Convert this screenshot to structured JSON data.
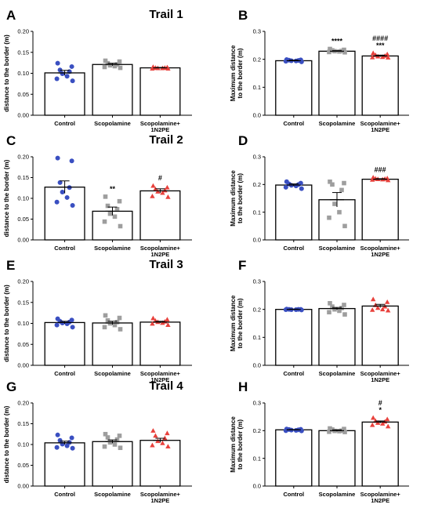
{
  "colors": {
    "Control": "#3a4fc1",
    "Scopolamine": "#9e9e9e",
    "Scopolamine+1N2PE": "#e8413c"
  },
  "chart_data": [
    {
      "type": "bar",
      "panel": "A",
      "title": "Trail 1",
      "ylabel": [
        "distance to the border (m)"
      ],
      "ylim": [
        0,
        0.2
      ],
      "yticks": [
        "0.00",
        "0.05",
        "0.10",
        "0.15",
        "0.20"
      ],
      "categories": [
        [
          "Control"
        ],
        [
          "Scopolamine"
        ],
        [
          "Scopolamine+",
          "1N2PE"
        ]
      ],
      "series": [
        {
          "values": [
            0.101,
            0.121,
            0.113
          ],
          "sem": [
            0.006,
            0.003,
            0.001
          ],
          "significance": [
            "",
            "",
            ""
          ]
        }
      ],
      "points": [
        [
          0.124,
          0.116,
          0.108,
          0.104,
          0.099,
          0.093,
          0.087,
          0.082
        ],
        [
          0.13,
          0.128,
          0.124,
          0.121,
          0.119,
          0.117,
          0.115,
          0.113
        ],
        [
          0.115,
          0.114,
          0.113,
          0.113,
          0.112,
          0.112,
          0.111,
          0.111
        ]
      ]
    },
    {
      "type": "bar",
      "panel": "B",
      "title": "",
      "ylabel": [
        "Maximum distance",
        "to the border (m)"
      ],
      "ylim": [
        0,
        0.3
      ],
      "yticks": [
        "0.0",
        "0.1",
        "0.2",
        "0.3"
      ],
      "categories": [
        [
          "Control"
        ],
        [
          "Scopolamine"
        ],
        [
          "Scopolamine+",
          "1N2PE"
        ]
      ],
      "series": [
        {
          "values": [
            0.195,
            0.229,
            0.212
          ],
          "sem": [
            0.002,
            0.002,
            0.003
          ],
          "significance": [
            "",
            "****",
            "####\n***"
          ]
        }
      ],
      "points": [
        [
          0.199,
          0.198,
          0.197,
          0.196,
          0.195,
          0.194,
          0.193,
          0.191
        ],
        [
          0.237,
          0.234,
          0.232,
          0.23,
          0.229,
          0.228,
          0.226,
          0.225
        ],
        [
          0.222,
          0.218,
          0.215,
          0.212,
          0.21,
          0.208,
          0.207,
          0.206
        ]
      ]
    },
    {
      "type": "bar",
      "panel": "C",
      "title": "Trail 2",
      "ylabel": [
        "distance to the border (m)"
      ],
      "ylim": [
        0,
        0.2
      ],
      "yticks": [
        "0.00",
        "0.05",
        "0.10",
        "0.15",
        "0.20"
      ],
      "categories": [
        [
          "Control"
        ],
        [
          "Scopolamine"
        ],
        [
          "Scopolamine+",
          "1N2PE"
        ]
      ],
      "series": [
        {
          "values": [
            0.127,
            0.069,
            0.118
          ],
          "sem": [
            0.015,
            0.01,
            0.005
          ],
          "significance": [
            "",
            "**",
            "#"
          ]
        }
      ],
      "points": [
        [
          0.197,
          0.19,
          0.138,
          0.126,
          0.115,
          0.102,
          0.091,
          0.083
        ],
        [
          0.104,
          0.093,
          0.082,
          0.074,
          0.063,
          0.056,
          0.044,
          0.033
        ],
        [
          0.13,
          0.126,
          0.122,
          0.119,
          0.116,
          0.113,
          0.105,
          0.103
        ]
      ]
    },
    {
      "type": "bar",
      "panel": "D",
      "title": "",
      "ylabel": [
        "Maximum distance",
        "to the border (m)"
      ],
      "ylim": [
        0,
        0.3
      ],
      "yticks": [
        "0.0",
        "0.1",
        "0.2",
        "0.3"
      ],
      "categories": [
        [
          "Control"
        ],
        [
          "Scopolamine"
        ],
        [
          "Scopolamine+",
          "1N2PE"
        ]
      ],
      "series": [
        {
          "values": [
            0.198,
            0.145,
            0.219
          ],
          "sem": [
            0.004,
            0.026,
            0.002
          ],
          "significance": [
            "",
            "",
            "###"
          ]
        }
      ],
      "points": [
        [
          0.21,
          0.205,
          0.202,
          0.2,
          0.197,
          0.195,
          0.19,
          0.185
        ],
        [
          0.21,
          0.205,
          0.2,
          0.18,
          0.13,
          0.1,
          0.08,
          0.05
        ],
        [
          0.225,
          0.222,
          0.221,
          0.22,
          0.219,
          0.218,
          0.217,
          0.215
        ]
      ]
    },
    {
      "type": "bar",
      "panel": "E",
      "title": "Trail 3",
      "ylabel": [
        "distance to the border (m)"
      ],
      "ylim": [
        0,
        0.2
      ],
      "yticks": [
        "0.00",
        "0.05",
        "0.10",
        "0.15",
        "0.20"
      ],
      "categories": [
        [
          "Control"
        ],
        [
          "Scopolamine"
        ],
        [
          "Scopolamine+",
          "1N2PE"
        ]
      ],
      "series": [
        {
          "values": [
            0.102,
            0.101,
            0.103
          ],
          "sem": [
            0.003,
            0.004,
            0.002
          ],
          "significance": [
            "",
            "",
            ""
          ]
        }
      ],
      "points": [
        [
          0.111,
          0.108,
          0.105,
          0.103,
          0.101,
          0.099,
          0.096,
          0.091
        ],
        [
          0.119,
          0.113,
          0.107,
          0.103,
          0.1,
          0.096,
          0.091,
          0.086
        ],
        [
          0.112,
          0.109,
          0.106,
          0.104,
          0.103,
          0.101,
          0.099,
          0.096
        ]
      ]
    },
    {
      "type": "bar",
      "panel": "F",
      "title": "",
      "ylabel": [
        "Maximum distance",
        "to the border (m)"
      ],
      "ylim": [
        0,
        0.3
      ],
      "yticks": [
        "0.0",
        "0.1",
        "0.2",
        "0.3"
      ],
      "categories": [
        [
          "Control"
        ],
        [
          "Scopolamine"
        ],
        [
          "Scopolamine+",
          "1N2PE"
        ]
      ],
      "series": [
        {
          "values": [
            0.2,
            0.203,
            0.212
          ],
          "sem": [
            0.001,
            0.004,
            0.006
          ],
          "significance": [
            "",
            "",
            ""
          ]
        }
      ],
      "points": [
        [
          0.201,
          0.2,
          0.2,
          0.2,
          0.199,
          0.199,
          0.199,
          0.198
        ],
        [
          0.222,
          0.216,
          0.21,
          0.205,
          0.2,
          0.195,
          0.19,
          0.182
        ],
        [
          0.236,
          0.226,
          0.215,
          0.21,
          0.205,
          0.2,
          0.198,
          0.196
        ]
      ]
    },
    {
      "type": "bar",
      "panel": "G",
      "title": "Trail 4",
      "ylabel": [
        "distance to the border (m)"
      ],
      "ylim": [
        0,
        0.2
      ],
      "yticks": [
        "0.00",
        "0.05",
        "0.10",
        "0.15",
        "0.20"
      ],
      "categories": [
        [
          "Control"
        ],
        [
          "Scopolamine"
        ],
        [
          "Scopolamine+",
          "1N2PE"
        ]
      ],
      "series": [
        {
          "values": [
            0.104,
            0.107,
            0.11
          ],
          "sem": [
            0.004,
            0.004,
            0.005
          ],
          "significance": [
            "",
            "",
            ""
          ]
        }
      ],
      "points": [
        [
          0.123,
          0.116,
          0.11,
          0.105,
          0.101,
          0.097,
          0.093,
          0.091
        ],
        [
          0.125,
          0.121,
          0.117,
          0.112,
          0.105,
          0.1,
          0.095,
          0.092
        ],
        [
          0.133,
          0.127,
          0.121,
          0.115,
          0.108,
          0.103,
          0.098,
          0.095
        ]
      ]
    },
    {
      "type": "bar",
      "panel": "H",
      "title": "",
      "ylabel": [
        "Maximum distance",
        "to the border (m)"
      ],
      "ylim": [
        0,
        0.3
      ],
      "yticks": [
        "0.0",
        "0.1",
        "0.2",
        "0.3"
      ],
      "categories": [
        [
          "Control"
        ],
        [
          "Scopolamine"
        ],
        [
          "Scopolamine+",
          "1N2PE"
        ]
      ],
      "series": [
        {
          "values": [
            0.203,
            0.2,
            0.231
          ],
          "sem": [
            0.001,
            0.003,
            0.004
          ],
          "significance": [
            "",
            "",
            "#\n*"
          ]
        }
      ],
      "points": [
        [
          0.206,
          0.205,
          0.204,
          0.203,
          0.202,
          0.201,
          0.2,
          0.199
        ],
        [
          0.208,
          0.206,
          0.204,
          0.2,
          0.199,
          0.198,
          0.196,
          0.195
        ],
        [
          0.246,
          0.241,
          0.235,
          0.232,
          0.228,
          0.225,
          0.22,
          0.215
        ]
      ]
    }
  ]
}
